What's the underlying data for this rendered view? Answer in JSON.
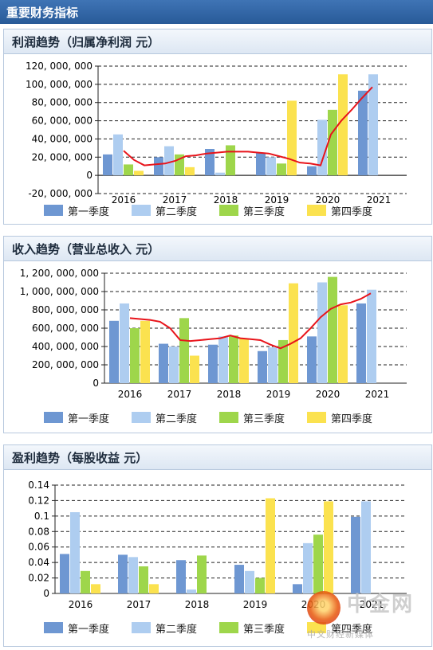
{
  "header": {
    "title": "重要财务指标"
  },
  "legend": [
    "第一季度",
    "第二季度",
    "第三季度",
    "第四季度"
  ],
  "colors": {
    "q1": "#6e97d2",
    "q2": "#aecdf0",
    "q3": "#9ed64b",
    "q4": "#fbe24f",
    "trend": "#e8141b"
  },
  "watermark": {
    "brand": "中金网",
    "sub": "中文财经新媒体"
  },
  "chart_data": [
    {
      "type": "bar",
      "title": "利润趋势（归属净利润 元）",
      "categories": [
        "2016",
        "2017",
        "2018",
        "2019",
        "2020",
        "2021"
      ],
      "ylim": [
        -20000000,
        120000000
      ],
      "yticks": [
        "-20, 000, 000",
        "0",
        "20, 000, 000",
        "40, 000, 000",
        "60, 000, 000",
        "80, 000, 000",
        "100, 000, 000",
        "120, 000, 000"
      ],
      "series": [
        {
          "name": "第一季度",
          "values": [
            23000000,
            20000000,
            29000000,
            25000000,
            10000000,
            93000000
          ]
        },
        {
          "name": "第二季度",
          "values": [
            45000000,
            32000000,
            3000000,
            20000000,
            61000000,
            111000000
          ]
        },
        {
          "name": "第三季度",
          "values": [
            12000000,
            23000000,
            33000000,
            13000000,
            72000000,
            null
          ]
        },
        {
          "name": "第四季度",
          "values": [
            5000000,
            9000000,
            0,
            82000000,
            111000000,
            null
          ]
        }
      ],
      "trend": [
        27000000,
        17000000,
        11000000,
        12000000,
        13000000,
        16000000,
        21000000,
        22000000,
        24000000,
        25000000,
        26000000,
        26000000,
        26000000,
        25000000,
        24000000,
        21000000,
        18000000,
        14000000,
        13000000,
        11000000,
        45000000,
        60000000,
        72000000,
        85000000,
        97000000
      ]
    },
    {
      "type": "bar",
      "title": "收入趋势（营业总收入 元）",
      "categories": [
        "2016",
        "2017",
        "2018",
        "2019",
        "2020",
        "2021"
      ],
      "ylim": [
        0,
        1200000000
      ],
      "yticks": [
        "0",
        "200, 000, 000",
        "400, 000, 000",
        "600, 000, 000",
        "800, 000, 000",
        "1, 000, 000, 000",
        "1, 200, 000, 000"
      ],
      "series": [
        {
          "name": "第一季度",
          "values": [
            680000000,
            430000000,
            420000000,
            350000000,
            510000000,
            870000000
          ]
        },
        {
          "name": "第二季度",
          "values": [
            870000000,
            400000000,
            510000000,
            390000000,
            1100000000,
            1020000000
          ]
        },
        {
          "name": "第三季度",
          "values": [
            600000000,
            710000000,
            520000000,
            470000000,
            1160000000,
            null
          ]
        },
        {
          "name": "第四季度",
          "values": [
            680000000,
            300000000,
            490000000,
            1090000000,
            850000000,
            null
          ]
        }
      ],
      "trend": [
        710000000,
        700000000,
        690000000,
        670000000,
        600000000,
        470000000,
        460000000,
        470000000,
        480000000,
        490000000,
        520000000,
        490000000,
        480000000,
        470000000,
        420000000,
        380000000,
        430000000,
        490000000,
        600000000,
        720000000,
        810000000,
        860000000,
        880000000,
        920000000,
        980000000
      ]
    },
    {
      "type": "bar",
      "title": "盈利趋势（每股收益 元）",
      "categories": [
        "2016",
        "2017",
        "2018",
        "2019",
        "2020",
        "2021"
      ],
      "ylim": [
        0,
        0.14
      ],
      "yticks": [
        "0",
        "0.02",
        "0.04",
        "0.06",
        "0.08",
        "0.1",
        "0.12",
        "0.14"
      ],
      "series": [
        {
          "name": "第一季度",
          "values": [
            0.051,
            0.05,
            0.043,
            0.037,
            0.012,
            0.099
          ]
        },
        {
          "name": "第二季度",
          "values": [
            0.105,
            0.047,
            0.005,
            0.029,
            0.065,
            0.119
          ]
        },
        {
          "name": "第三季度",
          "values": [
            0.029,
            0.035,
            0.049,
            0.02,
            0.076,
            null
          ]
        },
        {
          "name": "第四季度",
          "values": [
            0.012,
            0.012,
            0,
            0.123,
            0.119,
            null
          ]
        }
      ]
    }
  ]
}
